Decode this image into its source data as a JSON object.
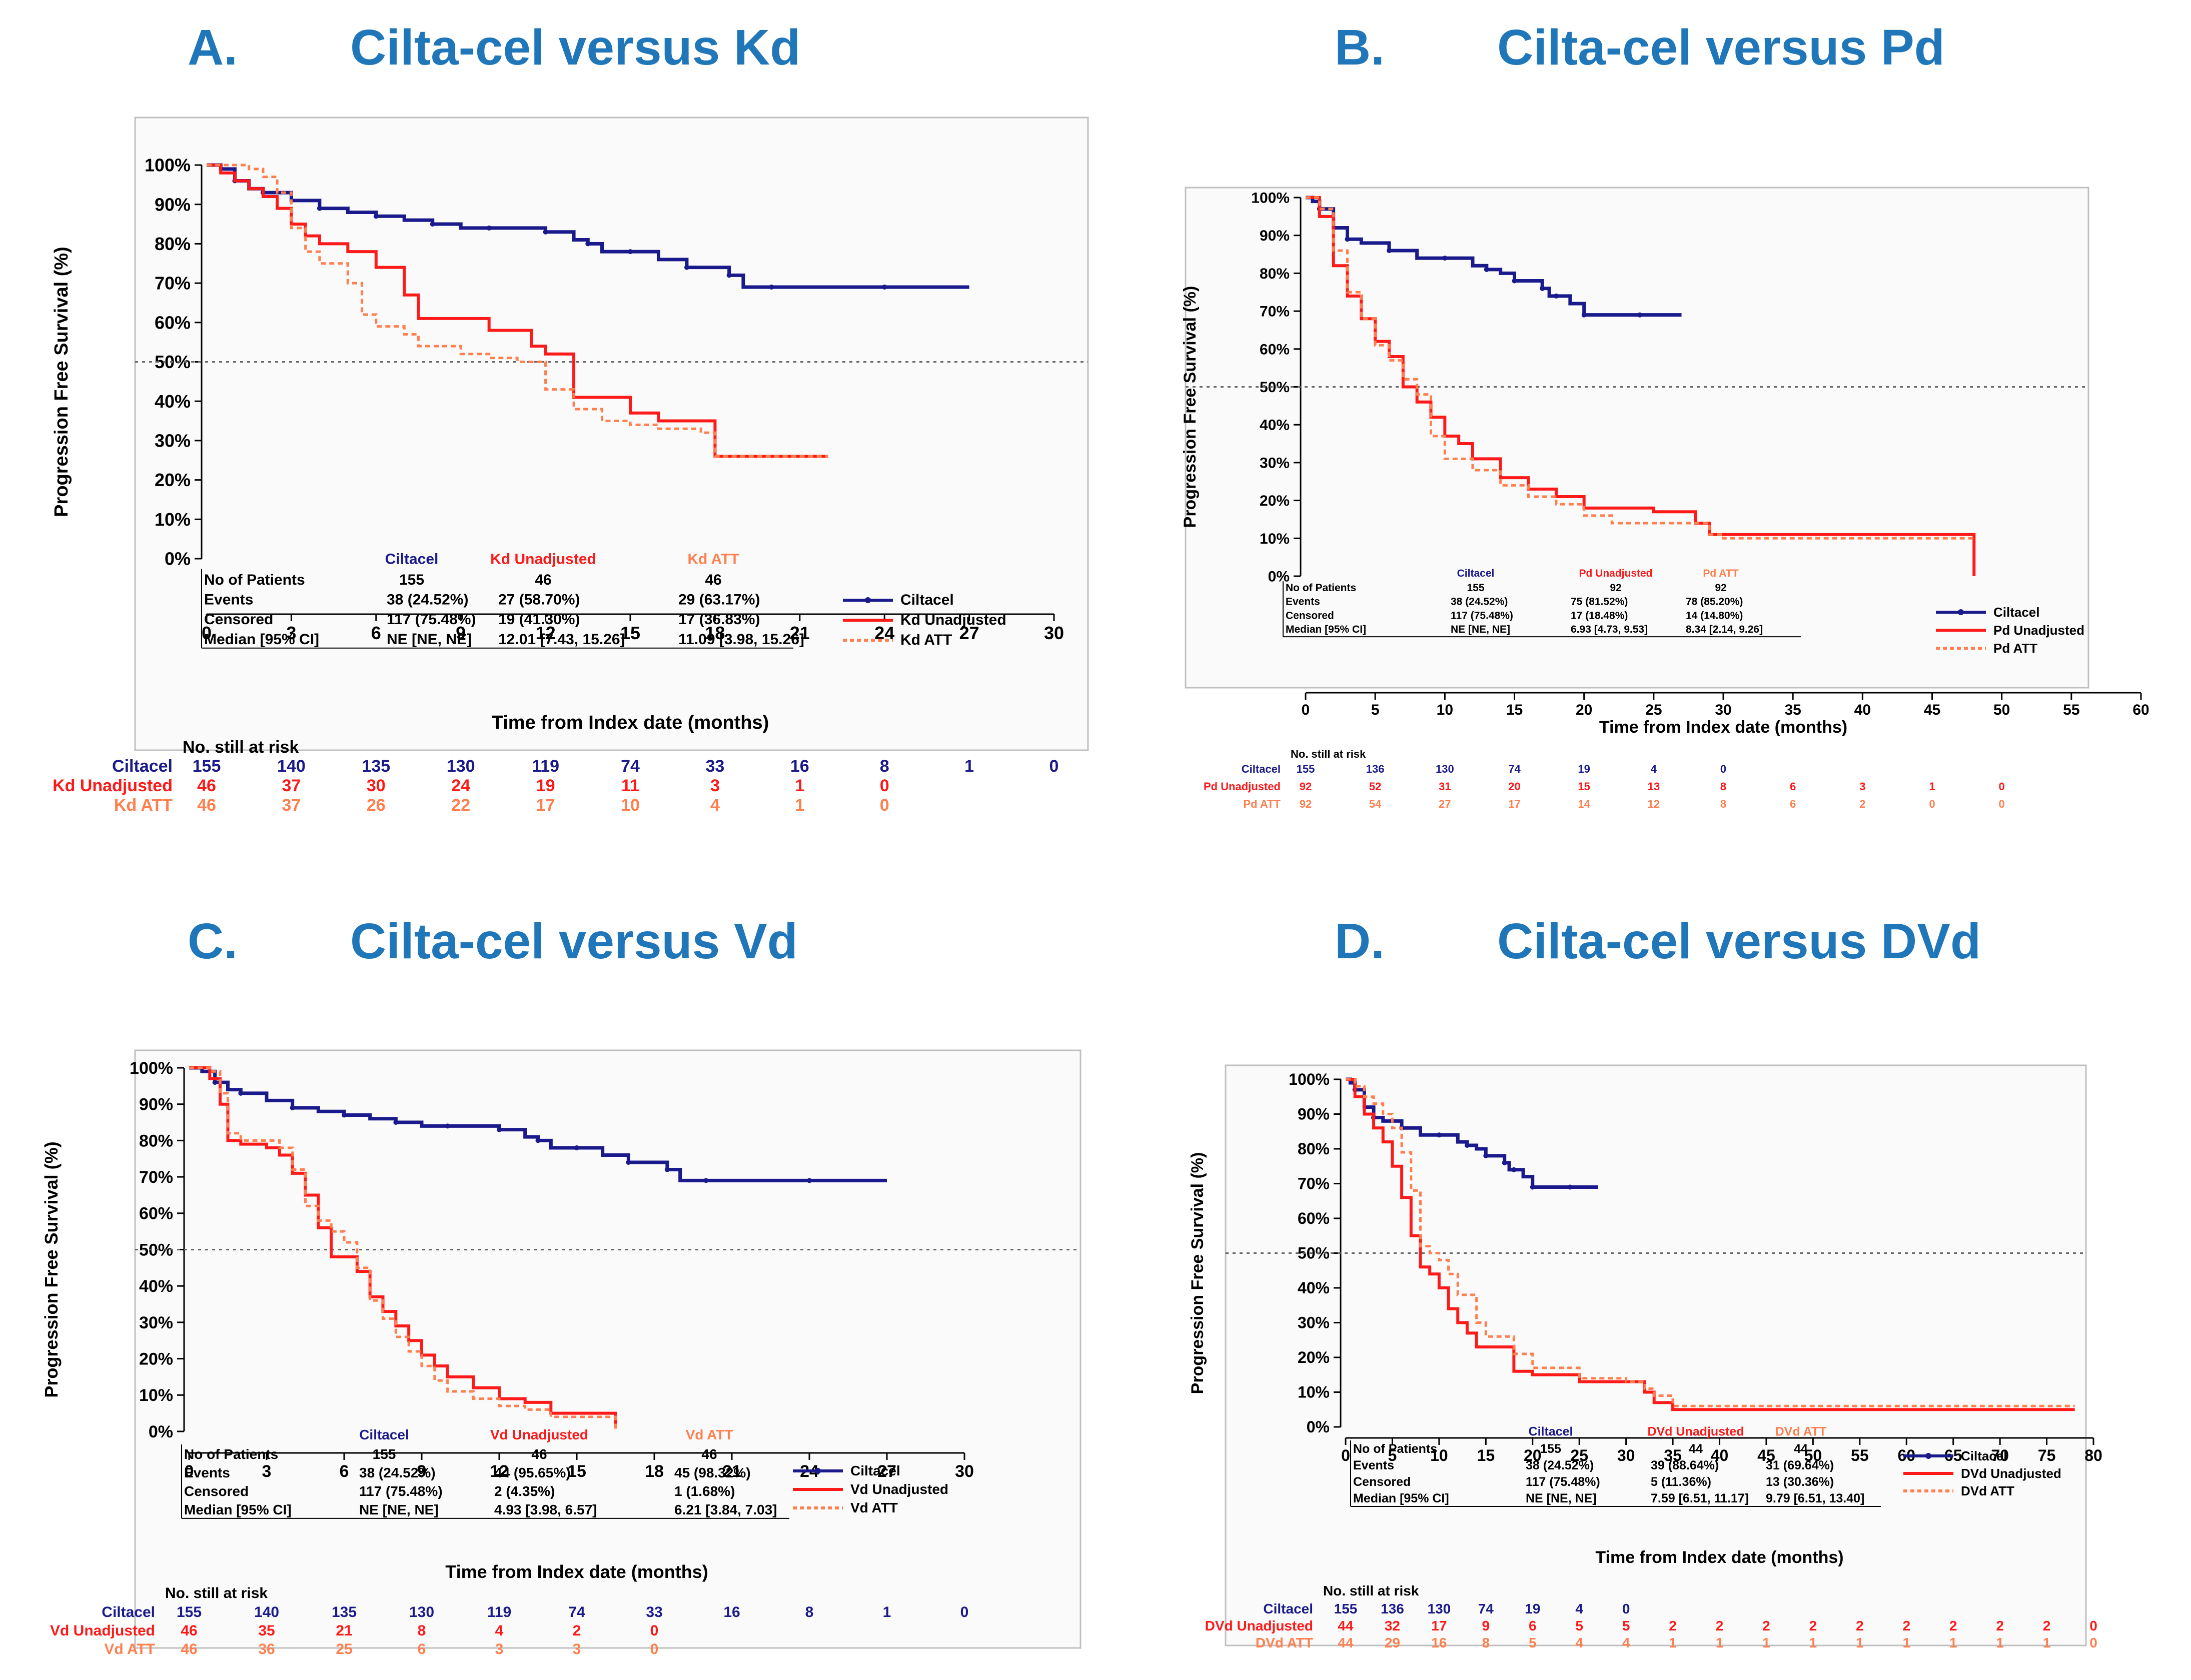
{
  "colors": {
    "ciltacel": "#1a1a8c",
    "unadj": "#ff1a1a",
    "att": "#ff7f4f",
    "header": "#1f76b8",
    "frame": "#bfbfbf",
    "ref": "#666666"
  },
  "common": {
    "ylabel": "Progression Free Survival (%)",
    "xlabel": "Time from Index date (months)",
    "ytick_labels": [
      "100%",
      "90%",
      "80%",
      "70%",
      "60%",
      "50%",
      "40%",
      "30%",
      "20%",
      "10%",
      "0%"
    ],
    "col_header_ciltacel": "Ciltacel",
    "row_labels": [
      "No of Patients",
      "Events",
      "Censored",
      "Median [95% CI]"
    ],
    "at_risk_title": "No. still at risk",
    "legend_ciltacel": "Ciltacel",
    "ciltacel_stats": [
      "155",
      "38 (24.52%)",
      "117 (75.48%)",
      "NE [NE, NE]"
    ],
    "ciltacel_name": "Ciltacel"
  },
  "chart_data": [
    {
      "type": "line",
      "panel_letter": "A.",
      "title": "Cilta-cel versus Kd",
      "xticks": [
        0,
        3,
        6,
        9,
        12,
        15,
        18,
        21,
        24,
        27,
        30
      ],
      "xlim": [
        0,
        30
      ],
      "ylim": [
        0,
        100
      ],
      "reference_line_y": 50,
      "comparator_header_unadj": "Kd Unadjusted",
      "comparator_header_att": "Kd ATT",
      "unadj_stats": [
        "46",
        "27 (58.70%)",
        "19 (41.30%)",
        "12.01 [7.43, 15.26]"
      ],
      "att_stats": [
        "46",
        "29 (63.17%)",
        "17 (36.83%)",
        "11.09 [3.98, 15.26]"
      ],
      "legend": [
        "Ciltacel",
        "Kd Unadjusted",
        "Kd ATT"
      ],
      "at_risk_labels": [
        "Ciltacel",
        "Kd Unadjusted",
        "Kd ATT"
      ],
      "at_risk_ciltacel": [
        "155",
        "140",
        "135",
        "130",
        "119",
        "74",
        "33",
        "16",
        "8",
        "1",
        "0"
      ],
      "at_risk_unadj": [
        "46",
        "37",
        "30",
        "24",
        "19",
        "11",
        "3",
        "1",
        "0"
      ],
      "at_risk_att": [
        "46",
        "37",
        "26",
        "22",
        "17",
        "10",
        "4",
        "1",
        "0"
      ],
      "series": [
        {
          "name": "Ciltacel",
          "x": [
            0,
            0.5,
            1,
            1.5,
            2,
            3,
            4,
            5,
            6,
            7,
            8,
            9,
            10,
            11,
            12,
            13,
            13.5,
            14,
            15,
            16,
            17,
            18,
            18.5,
            19,
            20,
            22,
            24,
            27
          ],
          "y": [
            100,
            99,
            96,
            94,
            93,
            91,
            89,
            88,
            87,
            86,
            85,
            84,
            84,
            84,
            83,
            81,
            80,
            78,
            78,
            76,
            74,
            74,
            72,
            69,
            69,
            69,
            69,
            69
          ]
        },
        {
          "name": "Kd Unadjusted",
          "x": [
            0,
            0.5,
            1,
            1.5,
            2,
            2.5,
            3,
            3.5,
            4,
            5,
            6,
            7,
            7.5,
            8,
            9,
            10,
            11,
            11.5,
            12,
            13,
            14,
            15,
            16,
            17,
            17.5,
            18,
            20,
            22
          ],
          "y": [
            100,
            98,
            96,
            94,
            92,
            89,
            85,
            82,
            80,
            78,
            74,
            67,
            61,
            61,
            61,
            58,
            58,
            54,
            52,
            41,
            41,
            37,
            35,
            35,
            35,
            26,
            26,
            26
          ]
        },
        {
          "name": "Kd ATT",
          "x": [
            0,
            0.5,
            1,
            1.5,
            2,
            2.5,
            3,
            3.5,
            4,
            5,
            5.5,
            6,
            7,
            7.5,
            8,
            9,
            10,
            11,
            12,
            13,
            14,
            15,
            16,
            17,
            17.5,
            18,
            20,
            22
          ],
          "y": [
            100,
            100,
            100,
            99,
            97,
            93,
            84,
            78,
            75,
            70,
            62,
            59,
            57,
            54,
            54,
            52,
            51,
            50,
            43,
            38,
            35,
            34,
            33,
            33,
            32,
            26,
            26,
            26
          ]
        }
      ]
    },
    {
      "type": "line",
      "panel_letter": "B.",
      "title": "Cilta-cel versus Pd",
      "xticks": [
        0,
        5,
        10,
        15,
        20,
        25,
        30,
        35,
        40,
        45,
        50,
        55,
        60
      ],
      "xlim": [
        0,
        60
      ],
      "ylim": [
        0,
        100
      ],
      "reference_line_y": 50,
      "comparator_header_unadj": "Pd Unadjusted",
      "comparator_header_att": "Pd ATT",
      "unadj_stats": [
        "92",
        "75 (81.52%)",
        "17 (18.48%)",
        "6.93 [4.73, 9.53]"
      ],
      "att_stats": [
        "92",
        "78 (85.20%)",
        "14 (14.80%)",
        "8.34 [2.14, 9.26]"
      ],
      "legend": [
        "Ciltacel",
        "Pd Unadjusted",
        "Pd ATT"
      ],
      "at_risk_labels": [
        "Ciltacel",
        "Pd Unadjusted",
        "Pd ATT"
      ],
      "at_risk_ciltacel": [
        "155",
        "136",
        "130",
        "74",
        "19",
        "4",
        "0"
      ],
      "at_risk_unadj": [
        "92",
        "52",
        "31",
        "20",
        "15",
        "13",
        "8",
        "6",
        "3",
        "1",
        "0"
      ],
      "at_risk_att": [
        "92",
        "54",
        "27",
        "17",
        "14",
        "12",
        "8",
        "6",
        "2",
        "0",
        "0"
      ],
      "series": [
        {
          "name": "Ciltacel",
          "x": [
            0,
            0.5,
            1,
            2,
            3,
            4,
            6,
            8,
            10,
            12,
            13,
            14,
            15,
            16,
            17,
            17.5,
            18,
            19,
            20,
            22,
            24,
            27
          ],
          "y": [
            100,
            99,
            97,
            92,
            89,
            88,
            86,
            84,
            84,
            82,
            81,
            80,
            78,
            78,
            76,
            74,
            74,
            72,
            69,
            69,
            69,
            69
          ]
        },
        {
          "name": "Pd Unadjusted",
          "x": [
            0,
            1,
            2,
            3,
            4,
            5,
            6,
            7,
            8,
            9,
            10,
            11,
            12,
            14,
            16,
            18,
            20,
            22,
            25,
            28,
            29,
            30,
            35,
            40,
            45,
            48,
            48.01
          ],
          "y": [
            100,
            95,
            82,
            74,
            68,
            62,
            58,
            50,
            46,
            42,
            37,
            35,
            31,
            26,
            23,
            21,
            18,
            18,
            17,
            14,
            11,
            11,
            11,
            11,
            11,
            11,
            0
          ]
        },
        {
          "name": "Pd ATT",
          "x": [
            0,
            1,
            2,
            3,
            4,
            5,
            6,
            7,
            8,
            9,
            10,
            12,
            14,
            16,
            18,
            20,
            22,
            25,
            28,
            29,
            30,
            35,
            40,
            45,
            48
          ],
          "y": [
            100,
            97,
            86,
            75,
            68,
            61,
            57,
            52,
            48,
            37,
            31,
            28,
            24,
            21,
            19,
            16,
            14,
            14,
            14,
            11,
            10,
            10,
            10,
            10,
            10
          ]
        }
      ]
    },
    {
      "type": "line",
      "panel_letter": "C.",
      "title": "Cilta-cel versus Vd",
      "xticks": [
        0,
        3,
        6,
        9,
        12,
        15,
        18,
        21,
        24,
        27,
        30
      ],
      "xlim": [
        0,
        30
      ],
      "ylim": [
        0,
        100
      ],
      "reference_line_y": 50,
      "comparator_header_unadj": "Vd Unadjusted",
      "comparator_header_att": "Vd ATT",
      "unadj_stats": [
        "46",
        "44 (95.65%)",
        "2 (4.35%)",
        "4.93 [3.98, 6.57]"
      ],
      "att_stats": [
        "46",
        "45 (98.32%)",
        "1 (1.68%)",
        "6.21 [3.84, 7.03]"
      ],
      "legend": [
        "Ciltacel",
        "Vd Unadjusted",
        "Vd ATT"
      ],
      "at_risk_labels": [
        "Ciltacel",
        "Vd Unadjusted",
        "Vd ATT"
      ],
      "at_risk_ciltacel": [
        "155",
        "140",
        "135",
        "130",
        "119",
        "74",
        "33",
        "16",
        "8",
        "1",
        "0"
      ],
      "at_risk_unadj": [
        "46",
        "35",
        "21",
        "8",
        "4",
        "2",
        "0"
      ],
      "at_risk_att": [
        "46",
        "36",
        "25",
        "6",
        "3",
        "3",
        "0"
      ],
      "series": [
        {
          "name": "Ciltacel",
          "x": [
            0,
            0.5,
            1,
            1.5,
            2,
            3,
            4,
            5,
            6,
            7,
            8,
            9,
            10,
            11,
            12,
            13,
            13.5,
            14,
            15,
            16,
            17,
            18,
            18.5,
            19,
            20,
            22,
            24,
            27
          ],
          "y": [
            100,
            99,
            96,
            94,
            93,
            91,
            89,
            88,
            87,
            86,
            85,
            84,
            84,
            84,
            83,
            81,
            80,
            78,
            78,
            76,
            74,
            74,
            72,
            69,
            69,
            69,
            69,
            69
          ]
        },
        {
          "name": "Vd Unadjusted",
          "x": [
            0,
            0.8,
            1.2,
            1.5,
            2,
            3,
            3.5,
            4,
            4.5,
            5,
            5.5,
            6,
            6.5,
            7,
            7.5,
            8,
            8.5,
            9,
            9.5,
            10,
            11,
            12,
            13,
            14,
            15,
            16,
            16.5
          ],
          "y": [
            100,
            97,
            90,
            80,
            79,
            78,
            76,
            71,
            65,
            56,
            48,
            48,
            44,
            37,
            33,
            29,
            25,
            21,
            18,
            15,
            12,
            9,
            8,
            5,
            5,
            5,
            2
          ]
        },
        {
          "name": "Vd ATT",
          "x": [
            0,
            0.8,
            1.2,
            1.5,
            2,
            3,
            3.5,
            4,
            4.5,
            5,
            5.5,
            6,
            6.5,
            7,
            7.5,
            8,
            8.5,
            9,
            9.5,
            10,
            11,
            12,
            13,
            14,
            15,
            16,
            16.5
          ],
          "y": [
            100,
            99,
            93,
            82,
            80,
            80,
            78,
            72,
            62,
            58,
            55,
            52,
            45,
            36,
            31,
            26,
            22,
            18,
            14,
            11,
            9,
            7,
            6,
            4,
            4,
            4,
            0
          ]
        }
      ]
    },
    {
      "type": "line",
      "panel_letter": "D.",
      "title": "Cilta-cel versus DVd",
      "xticks": [
        0,
        5,
        10,
        15,
        20,
        25,
        30,
        35,
        40,
        45,
        50,
        55,
        60,
        65,
        70,
        75,
        80
      ],
      "xlim": [
        0,
        80
      ],
      "ylim": [
        0,
        100
      ],
      "reference_line_y": 50,
      "comparator_header_unadj": "DVd Unadjusted",
      "comparator_header_att": "DVd ATT",
      "unadj_stats": [
        "44",
        "39 (88.64%)",
        "5 (11.36%)",
        "7.59 [6.51, 11.17]"
      ],
      "att_stats": [
        "44",
        "31 (69.64%)",
        "13 (30.36%)",
        "9.79 [6.51, 13.40]"
      ],
      "legend": [
        "Ciltacel",
        "DVd Unadjusted",
        "DVd ATT"
      ],
      "at_risk_labels": [
        "Ciltacel",
        "DVd Unadjusted",
        "DVd ATT"
      ],
      "at_risk_ciltacel": [
        "155",
        "136",
        "130",
        "74",
        "19",
        "4",
        "0"
      ],
      "at_risk_unadj": [
        "44",
        "32",
        "17",
        "9",
        "6",
        "5",
        "5",
        "2",
        "2",
        "2",
        "2",
        "2",
        "2",
        "2",
        "2",
        "2",
        "0"
      ],
      "at_risk_att": [
        "44",
        "29",
        "16",
        "8",
        "5",
        "4",
        "4",
        "1",
        "1",
        "1",
        "1",
        "1",
        "1",
        "1",
        "1",
        "1",
        "0"
      ],
      "series": [
        {
          "name": "Ciltacel",
          "x": [
            0,
            0.5,
            1,
            2,
            3,
            4,
            6,
            8,
            10,
            12,
            13,
            14,
            15,
            16,
            17,
            17.5,
            18,
            19,
            20,
            22,
            24,
            27
          ],
          "y": [
            100,
            99,
            97,
            92,
            89,
            88,
            86,
            84,
            84,
            82,
            81,
            80,
            78,
            78,
            76,
            74,
            74,
            72,
            69,
            69,
            69,
            69
          ]
        },
        {
          "name": "DVd Unadjusted",
          "x": [
            0,
            1,
            2,
            3,
            4,
            5,
            6,
            7,
            8,
            9,
            10,
            11,
            12,
            13,
            14,
            15,
            18,
            20,
            25,
            30,
            32,
            33,
            35,
            40,
            50,
            60,
            70,
            78
          ],
          "y": [
            100,
            95,
            90,
            86,
            82,
            75,
            66,
            55,
            46,
            44,
            40,
            34,
            30,
            27,
            23,
            23,
            16,
            15,
            13,
            13,
            10,
            7,
            5,
            5,
            5,
            5,
            5,
            5
          ]
        },
        {
          "name": "DVd ATT",
          "x": [
            0,
            1,
            2,
            3,
            4,
            5,
            6,
            7,
            8,
            9,
            10,
            11,
            12,
            14,
            15,
            18,
            20,
            25,
            30,
            32,
            33,
            35,
            40,
            50,
            60,
            70,
            78
          ],
          "y": [
            100,
            98,
            95,
            93,
            90,
            86,
            79,
            68,
            52,
            50,
            48,
            44,
            38,
            30,
            26,
            21,
            17,
            14,
            13,
            11,
            9,
            6,
            6,
            6,
            6,
            6,
            6
          ]
        }
      ]
    }
  ]
}
